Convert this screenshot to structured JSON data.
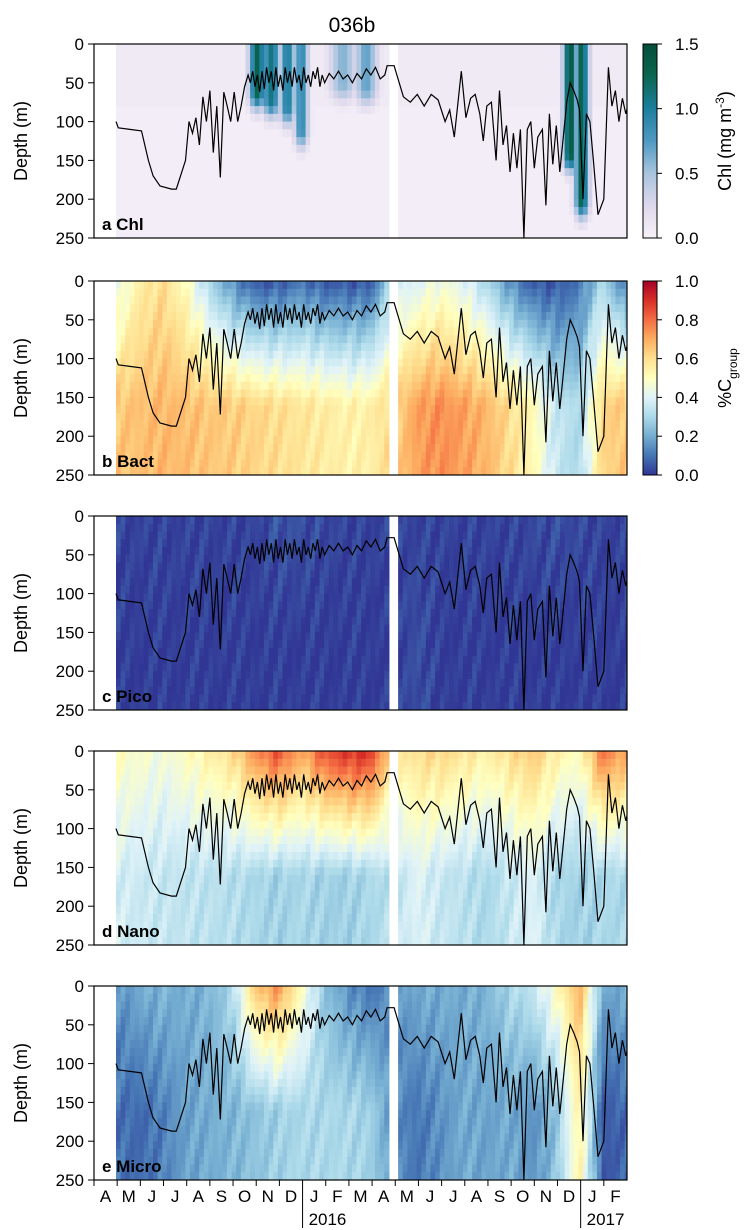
{
  "figure": {
    "title": "036b",
    "x_months": [
      "A",
      "M",
      "J",
      "J",
      "A",
      "S",
      "O",
      "N",
      "D",
      "J",
      "F",
      "M",
      "A",
      "M",
      "J",
      "J",
      "A",
      "S",
      "O",
      "N",
      "D",
      "J",
      "F"
    ],
    "year_labels": [
      {
        "label": "2016",
        "month_index": 9
      },
      {
        "label": "2017",
        "month_index": 21
      }
    ]
  },
  "colorbars": {
    "chl": {
      "label_main": "Chl (mg m",
      "label_sup": "-3",
      "label_end": ")",
      "ticks": [
        "0.0",
        "0.5",
        "1.0",
        "1.5"
      ],
      "tick_values": [
        0.0,
        0.5,
        1.0,
        1.5
      ],
      "colors": [
        "#f7f2f8",
        "#ded8ec",
        "#a9c4de",
        "#4f99c3",
        "#1c7f9e",
        "#0b6651",
        "#044e3b"
      ]
    },
    "group": {
      "label_main": "%C",
      "label_sub": "group",
      "ticks": [
        "0.0",
        "0.2",
        "0.4",
        "0.6",
        "0.8",
        "1.0"
      ],
      "tick_values": [
        0.0,
        0.2,
        0.4,
        0.6,
        0.8,
        1.0
      ],
      "colors": [
        "#313695",
        "#4575b4",
        "#74add1",
        "#abd9e9",
        "#e0f3f8",
        "#ffffbf",
        "#fee090",
        "#fdae61",
        "#f46d43",
        "#d73027",
        "#a50026"
      ]
    }
  },
  "chart_data": [
    {
      "type": "heatmap",
      "panel_label": "a Chl",
      "ylabel": "Depth (m)",
      "ylim": [
        250,
        0
      ],
      "yticks": [
        "0",
        "50",
        "100",
        "150",
        "200",
        "250"
      ],
      "colorbar": "chl",
      "base_value": 0.05,
      "blooms": [
        {
          "month": 6.1,
          "width": 0.35,
          "depth": 60,
          "value": 1.3
        },
        {
          "month": 6.7,
          "width": 0.4,
          "depth": 70,
          "value": 1.1
        },
        {
          "month": 7.4,
          "width": 0.35,
          "depth": 80,
          "value": 1.0
        },
        {
          "month": 8.0,
          "width": 0.3,
          "depth": 110,
          "value": 0.9
        },
        {
          "month": 9.8,
          "width": 0.6,
          "depth": 50,
          "value": 0.6
        },
        {
          "month": 10.8,
          "width": 0.5,
          "depth": 55,
          "value": 0.7
        },
        {
          "month": 19.6,
          "width": 0.3,
          "depth": 140,
          "value": 1.4
        },
        {
          "month": 20.1,
          "width": 0.3,
          "depth": 200,
          "value": 1.3
        }
      ]
    },
    {
      "type": "heatmap",
      "panel_label": "b Bact",
      "ylabel": "Depth (m)",
      "ylim": [
        250,
        0
      ],
      "yticks": [
        "0",
        "50",
        "100",
        "150",
        "200",
        "250"
      ],
      "colorbar": "group",
      "surface_values": [
        0.4,
        0.55,
        0.6,
        0.5,
        0.3,
        0.15,
        0.05,
        0.05,
        0.1,
        0.05,
        0.05,
        0.05,
        0.35,
        0.4,
        0.45,
        0.4,
        0.3,
        0.15,
        0.05,
        0.05,
        0.1,
        0.3,
        0.1
      ],
      "deep_values": [
        0.65,
        0.66,
        0.68,
        0.67,
        0.65,
        0.64,
        0.62,
        0.6,
        0.58,
        0.56,
        0.54,
        0.55,
        0.62,
        0.72,
        0.75,
        0.72,
        0.68,
        0.6,
        0.52,
        0.35,
        0.3,
        0.62,
        0.65
      ]
    },
    {
      "type": "heatmap",
      "panel_label": "c Pico",
      "ylabel": "Depth (m)",
      "ylim": [
        250,
        0
      ],
      "yticks": [
        "0",
        "50",
        "100",
        "150",
        "200",
        "250"
      ],
      "colorbar": "group",
      "surface_values": [
        0.02,
        0.02,
        0.02,
        0.02,
        0.02,
        0.02,
        0.02,
        0.05,
        0.04,
        0.03,
        0.02,
        0.02,
        0.02,
        0.02,
        0.02,
        0.02,
        0.02,
        0.02,
        0.03,
        0.04,
        0.03,
        0.02,
        0.02
      ],
      "deep_values": [
        0.01,
        0.01,
        0.01,
        0.01,
        0.01,
        0.01,
        0.01,
        0.01,
        0.01,
        0.01,
        0.01,
        0.01,
        0.01,
        0.04,
        0.01,
        0.01,
        0.01,
        0.01,
        0.01,
        0.01,
        0.01,
        0.01,
        0.01
      ]
    },
    {
      "type": "heatmap",
      "panel_label": "d Nano",
      "ylabel": "Depth (m)",
      "ylim": [
        250,
        0
      ],
      "yticks": [
        "0",
        "50",
        "100",
        "150",
        "200",
        "250"
      ],
      "colorbar": "group",
      "surface_values": [
        0.5,
        0.48,
        0.45,
        0.5,
        0.55,
        0.6,
        0.75,
        0.85,
        0.7,
        0.85,
        0.9,
        0.9,
        0.55,
        0.6,
        0.62,
        0.58,
        0.55,
        0.6,
        0.65,
        0.55,
        0.5,
        0.8,
        0.7
      ],
      "deep_values": [
        0.38,
        0.36,
        0.35,
        0.34,
        0.33,
        0.32,
        0.3,
        0.28,
        0.3,
        0.28,
        0.28,
        0.3,
        0.33,
        0.4,
        0.35,
        0.33,
        0.3,
        0.35,
        0.4,
        0.3,
        0.28,
        0.3,
        0.3
      ]
    },
    {
      "type": "heatmap",
      "panel_label": "e Micro",
      "ylabel": "Depth (m)",
      "ylim": [
        250,
        0
      ],
      "yticks": [
        "0",
        "50",
        "100",
        "150",
        "200",
        "250"
      ],
      "colorbar": "group",
      "surface_values": [
        0.15,
        0.2,
        0.22,
        0.2,
        0.22,
        0.3,
        0.65,
        0.75,
        0.5,
        0.25,
        0.15,
        0.1,
        0.15,
        0.2,
        0.2,
        0.2,
        0.22,
        0.3,
        0.35,
        0.5,
        0.7,
        0.2,
        0.2
      ],
      "deep_values": [
        0.1,
        0.08,
        0.12,
        0.18,
        0.2,
        0.22,
        0.25,
        0.28,
        0.3,
        0.3,
        0.3,
        0.28,
        0.15,
        0.1,
        0.15,
        0.2,
        0.18,
        0.2,
        0.15,
        0.25,
        0.55,
        0.05,
        0.08
      ]
    }
  ],
  "mixed_layer_depth": [
    [
      0.0,
      100
    ],
    [
      0.1,
      108
    ],
    [
      0.6,
      110
    ],
    [
      1.1,
      112
    ],
    [
      1.4,
      150
    ],
    [
      1.6,
      170
    ],
    [
      1.9,
      183
    ],
    [
      2.4,
      187
    ],
    [
      2.6,
      187
    ],
    [
      3.0,
      150
    ],
    [
      3.15,
      100
    ],
    [
      3.3,
      115
    ],
    [
      3.45,
      95
    ],
    [
      3.6,
      130
    ],
    [
      3.75,
      68
    ],
    [
      3.9,
      100
    ],
    [
      4.05,
      60
    ],
    [
      4.2,
      140
    ],
    [
      4.35,
      80
    ],
    [
      4.5,
      172
    ],
    [
      4.65,
      62
    ],
    [
      4.8,
      80
    ],
    [
      4.95,
      100
    ],
    [
      5.1,
      62
    ],
    [
      5.25,
      100
    ],
    [
      5.4,
      80
    ],
    [
      5.55,
      55
    ],
    [
      5.7,
      40
    ],
    [
      5.8,
      50
    ],
    [
      5.9,
      35
    ],
    [
      6.0,
      55
    ],
    [
      6.1,
      40
    ],
    [
      6.2,
      62
    ],
    [
      6.3,
      35
    ],
    [
      6.4,
      58
    ],
    [
      6.5,
      30
    ],
    [
      6.6,
      50
    ],
    [
      6.7,
      35
    ],
    [
      6.8,
      60
    ],
    [
      6.9,
      30
    ],
    [
      7.0,
      55
    ],
    [
      7.1,
      40
    ],
    [
      7.2,
      60
    ],
    [
      7.3,
      30
    ],
    [
      7.4,
      50
    ],
    [
      7.5,
      35
    ],
    [
      7.6,
      55
    ],
    [
      7.7,
      30
    ],
    [
      7.8,
      50
    ],
    [
      7.9,
      40
    ],
    [
      8.0,
      60
    ],
    [
      8.1,
      30
    ],
    [
      8.2,
      50
    ],
    [
      8.3,
      40
    ],
    [
      8.4,
      55
    ],
    [
      8.5,
      35
    ],
    [
      8.6,
      45
    ],
    [
      8.7,
      30
    ],
    [
      8.8,
      55
    ],
    [
      8.9,
      40
    ],
    [
      9.0,
      50
    ],
    [
      9.2,
      38
    ],
    [
      9.4,
      45
    ],
    [
      9.6,
      35
    ],
    [
      9.8,
      45
    ],
    [
      10.0,
      40
    ],
    [
      10.2,
      50
    ],
    [
      10.4,
      38
    ],
    [
      10.6,
      45
    ],
    [
      10.8,
      32
    ],
    [
      11.0,
      40
    ],
    [
      11.2,
      30
    ],
    [
      11.4,
      45
    ],
    [
      11.6,
      40
    ],
    [
      11.7,
      28
    ],
    [
      12.0,
      28
    ],
    [
      12.4,
      68
    ],
    [
      12.7,
      75
    ],
    [
      13.0,
      65
    ],
    [
      13.3,
      80
    ],
    [
      13.6,
      65
    ],
    [
      13.9,
      72
    ],
    [
      14.2,
      100
    ],
    [
      14.4,
      85
    ],
    [
      14.6,
      120
    ],
    [
      14.9,
      35
    ],
    [
      15.1,
      95
    ],
    [
      15.3,
      70
    ],
    [
      15.5,
      65
    ],
    [
      15.7,
      90
    ],
    [
      15.85,
      125
    ],
    [
      16.0,
      80
    ],
    [
      16.2,
      75
    ],
    [
      16.4,
      150
    ],
    [
      16.55,
      60
    ],
    [
      16.7,
      130
    ],
    [
      16.85,
      105
    ],
    [
      17.0,
      165
    ],
    [
      17.15,
      115
    ],
    [
      17.3,
      160
    ],
    [
      17.45,
      110
    ],
    [
      17.6,
      250
    ],
    [
      17.75,
      110
    ],
    [
      17.9,
      100
    ],
    [
      18.05,
      160
    ],
    [
      18.2,
      120
    ],
    [
      18.4,
      110
    ],
    [
      18.55,
      208
    ],
    [
      18.7,
      90
    ],
    [
      18.85,
      155
    ],
    [
      19.0,
      105
    ],
    [
      19.15,
      165
    ],
    [
      19.3,
      120
    ],
    [
      19.45,
      75
    ],
    [
      19.6,
      50
    ],
    [
      19.75,
      60
    ],
    [
      19.9,
      72
    ],
    [
      20.0,
      85
    ],
    [
      20.15,
      200
    ],
    [
      20.3,
      90
    ],
    [
      20.45,
      100
    ],
    [
      20.6,
      150
    ],
    [
      20.8,
      220
    ],
    [
      21.05,
      200
    ],
    [
      21.25,
      30
    ],
    [
      21.4,
      80
    ],
    [
      21.55,
      60
    ],
    [
      21.7,
      100
    ],
    [
      21.85,
      70
    ],
    [
      22.0,
      90
    ],
    [
      22.15,
      72
    ],
    [
      22.3,
      100
    ],
    [
      22.45,
      75
    ],
    [
      22.6,
      95
    ]
  ]
}
